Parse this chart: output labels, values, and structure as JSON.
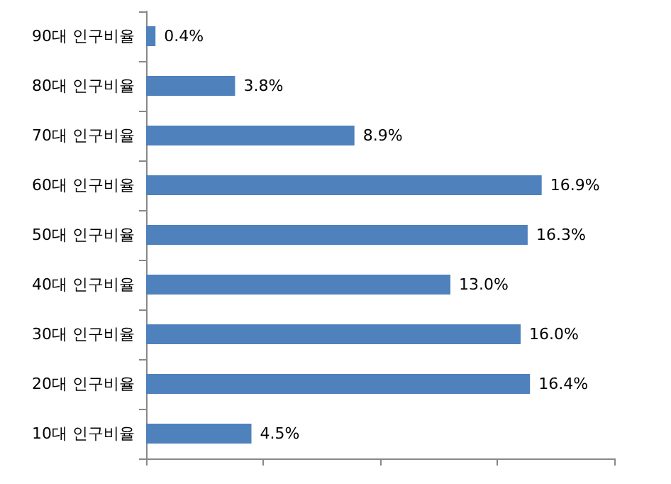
{
  "chart_data": {
    "type": "bar",
    "orientation": "horizontal",
    "categories": [
      "90대 인구비율",
      "80대 인구비율",
      "70대 인구비율",
      "60대 인구비율",
      "50대 인구비율",
      "40대 인구비율",
      "30대 인구비율",
      "20대 인구비율",
      "10대 인구비율"
    ],
    "values": [
      0.4,
      3.8,
      8.9,
      16.9,
      16.3,
      13.0,
      16.0,
      16.4,
      4.5
    ],
    "value_labels": [
      "0.4%",
      "3.8%",
      "8.9%",
      "16.9%",
      "16.3%",
      "13.0%",
      "16.0%",
      "16.4%",
      "4.5%"
    ],
    "color": "#4f81bd",
    "xlim": [
      0,
      20
    ],
    "xticks": [
      {
        "value": 0,
        "label": null
      },
      {
        "value": 5,
        "label": null
      },
      {
        "value": 10,
        "label": null
      },
      {
        "value": 15,
        "label": null
      },
      {
        "value": 20,
        "label": null
      }
    ],
    "grid": false
  }
}
